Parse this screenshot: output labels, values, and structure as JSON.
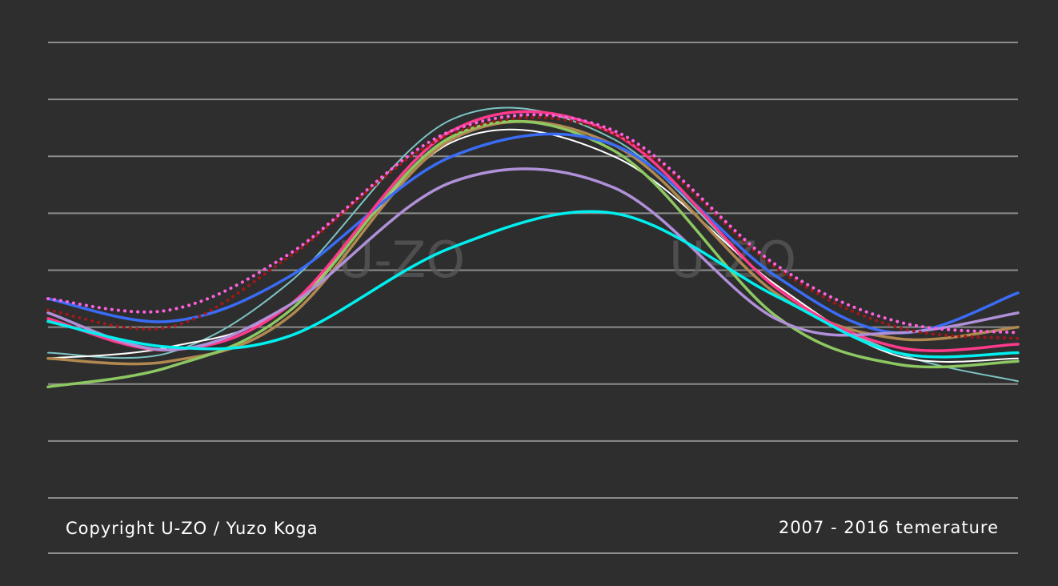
{
  "footer": {
    "copyright": "Copyright U-ZO / Yuzo Koga",
    "caption": "2007 - 2016 temerature"
  },
  "watermark": {
    "text": "U-ZO"
  },
  "chart_data": {
    "type": "line",
    "title": "",
    "xlabel": "",
    "ylabel": "",
    "x_range": [
      0,
      12
    ],
    "ylim": [
      0,
      8
    ],
    "grid": true,
    "legend": "none",
    "series": [
      {
        "color": "#7cc4c4",
        "line_style": "thin",
        "values": [
          [
            0,
            2.55
          ],
          [
            1.5,
            2.55
          ],
          [
            3,
            3.8
          ],
          [
            5,
            6.65
          ],
          [
            7,
            6.3
          ],
          [
            9,
            3.7
          ],
          [
            10.5,
            2.55
          ],
          [
            12,
            2.05
          ]
        ]
      },
      {
        "color": "#ffffff",
        "line_style": "thin",
        "values": [
          [
            0,
            2.45
          ],
          [
            1.5,
            2.65
          ],
          [
            3,
            3.4
          ],
          [
            5,
            6.25
          ],
          [
            7,
            6.0
          ],
          [
            9,
            3.75
          ],
          [
            10.5,
            2.5
          ],
          [
            12,
            2.45
          ]
        ]
      },
      {
        "color": "#b08850",
        "line_style": "solid",
        "values": [
          [
            0,
            2.45
          ],
          [
            1.5,
            2.4
          ],
          [
            3,
            3.2
          ],
          [
            5,
            6.3
          ],
          [
            7,
            6.2
          ],
          [
            9,
            3.6
          ],
          [
            10.5,
            2.8
          ],
          [
            12,
            3.0
          ]
        ]
      },
      {
        "color": "#8dc862",
        "line_style": "solid",
        "values": [
          [
            0,
            1.95
          ],
          [
            1.5,
            2.3
          ],
          [
            3,
            3.3
          ],
          [
            5,
            6.35
          ],
          [
            7,
            6.1
          ],
          [
            9,
            3.2
          ],
          [
            10.5,
            2.35
          ],
          [
            12,
            2.4
          ]
        ]
      },
      {
        "color": "#3a6cf5",
        "line_style": "solid",
        "values": [
          [
            0,
            3.5
          ],
          [
            1.5,
            3.1
          ],
          [
            3,
            3.9
          ],
          [
            5,
            6.0
          ],
          [
            7,
            6.2
          ],
          [
            9,
            3.9
          ],
          [
            10.5,
            2.9
          ],
          [
            12,
            3.6
          ]
        ]
      },
      {
        "color": "#ff3a8c",
        "line_style": "solid",
        "values": [
          [
            0,
            3.15
          ],
          [
            1.5,
            2.6
          ],
          [
            3,
            3.4
          ],
          [
            5,
            6.45
          ],
          [
            7,
            6.4
          ],
          [
            9,
            3.7
          ],
          [
            10.5,
            2.65
          ],
          [
            12,
            2.7
          ]
        ]
      },
      {
        "color": "#b090d8",
        "line_style": "solid",
        "values": [
          [
            0,
            3.25
          ],
          [
            1.5,
            2.6
          ],
          [
            3,
            3.4
          ],
          [
            5,
            5.55
          ],
          [
            7,
            5.45
          ],
          [
            9,
            3.15
          ],
          [
            10.5,
            2.9
          ],
          [
            12,
            3.25
          ]
        ]
      },
      {
        "color": "#00f0f0",
        "line_style": "solid",
        "values": [
          [
            0,
            3.1
          ],
          [
            1.5,
            2.65
          ],
          [
            3,
            2.85
          ],
          [
            5,
            4.4
          ],
          [
            7,
            5.0
          ],
          [
            9,
            3.55
          ],
          [
            10.5,
            2.55
          ],
          [
            12,
            2.55
          ]
        ]
      },
      {
        "color": "#a01818",
        "line_style": "dotted",
        "values": [
          [
            0,
            3.3
          ],
          [
            1.5,
            3.0
          ],
          [
            3,
            4.25
          ],
          [
            5,
            6.4
          ],
          [
            7,
            6.4
          ],
          [
            9,
            4.05
          ],
          [
            10.5,
            3.0
          ],
          [
            12,
            2.8
          ]
        ]
      },
      {
        "color": "#ff60e0",
        "line_style": "dotted",
        "values": [
          [
            0,
            3.5
          ],
          [
            1.5,
            3.3
          ],
          [
            3,
            4.3
          ],
          [
            5,
            6.45
          ],
          [
            7,
            6.45
          ],
          [
            9,
            4.1
          ],
          [
            10.5,
            3.1
          ],
          [
            12,
            2.9
          ]
        ]
      }
    ]
  }
}
